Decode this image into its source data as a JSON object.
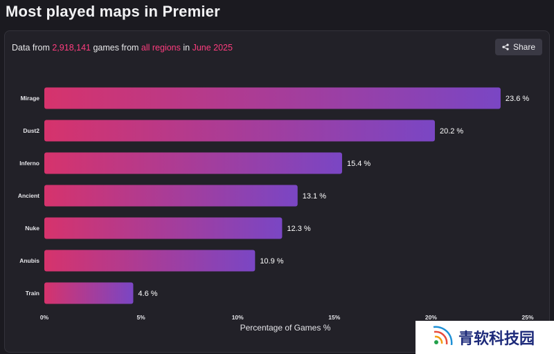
{
  "page": {
    "title": "Most played maps in Premier"
  },
  "card": {
    "subtitle_prefix": "Data from ",
    "games_count": "2,918,141",
    "subtitle_mid1": " games from ",
    "regions": "all regions",
    "subtitle_mid2": " in ",
    "period": "June 2025",
    "share_label": "Share",
    "share_icon": "share-icon"
  },
  "watermark": {
    "text": "青软科技园",
    "logo_icon": "signal-logo-icon"
  },
  "colors": {
    "bar_start": "#d6336c",
    "bar_end": "#7a46c4",
    "highlight": "#ff3d7f"
  },
  "chart_data": {
    "type": "bar",
    "orientation": "horizontal",
    "categories": [
      "Mirage",
      "Dust2",
      "Inferno",
      "Ancient",
      "Nuke",
      "Anubis",
      "Train"
    ],
    "values": [
      23.6,
      20.2,
      15.4,
      13.1,
      12.3,
      10.9,
      4.6
    ],
    "value_labels": [
      "23.6 %",
      "20.2 %",
      "15.4 %",
      "13.1 %",
      "12.3 %",
      "10.9 %",
      "4.6 %"
    ],
    "xticks": [
      0,
      5,
      10,
      15,
      20,
      25
    ],
    "xtick_labels": [
      "0%",
      "5%",
      "10%",
      "15%",
      "20%",
      "25%"
    ],
    "xlim": [
      0,
      25
    ],
    "xlabel": "Percentage of Games %",
    "grid": false
  }
}
